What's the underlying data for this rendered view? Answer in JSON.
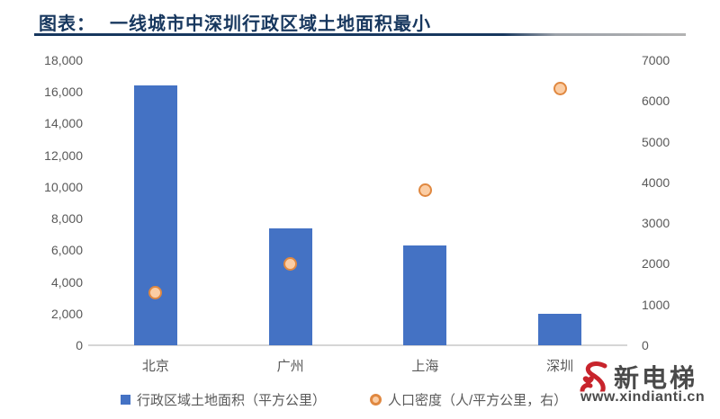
{
  "header": {
    "prefix": "图表：",
    "title": "一线城市中深圳行政区域土地面积最小"
  },
  "chart_data": {
    "type": "bar",
    "title": "一线城市中深圳行政区域土地面积最小",
    "categories": [
      "北京",
      "广州",
      "上海",
      "深圳"
    ],
    "series": [
      {
        "name": "行政区域土地面积（平方公里）",
        "type": "bar",
        "axis": "left",
        "values": [
          16400,
          7400,
          6300,
          2000
        ]
      },
      {
        "name": "人口密度（人/平方公里，右）",
        "type": "scatter",
        "axis": "right",
        "values": [
          1300,
          2000,
          3800,
          6300
        ]
      }
    ],
    "left_axis": {
      "range": [
        0,
        18000
      ],
      "step": 2000,
      "tick_labels": [
        "18,000",
        "16,000",
        "14,000",
        "12,000",
        "10,000",
        "8,000",
        "6,000",
        "4,000",
        "2,000",
        "0"
      ]
    },
    "right_axis": {
      "range": [
        0,
        7000
      ],
      "step": 1000,
      "tick_labels": [
        "7000",
        "6000",
        "5000",
        "4000",
        "3000",
        "2000",
        "1000",
        "0"
      ]
    },
    "grid": false,
    "legend_position": "bottom"
  },
  "watermark": {
    "name": "新电梯",
    "url": "www.xindianti.cn"
  },
  "colors": {
    "title": "#17375E",
    "bar": "#4472C4",
    "dot_fill": "#FBCDA4",
    "dot_stroke": "#E08840",
    "axis_text": "#595959",
    "baseline": "#D6D6D6",
    "logo_red": "#C8242C",
    "logo_text": "#4A4A4A"
  }
}
